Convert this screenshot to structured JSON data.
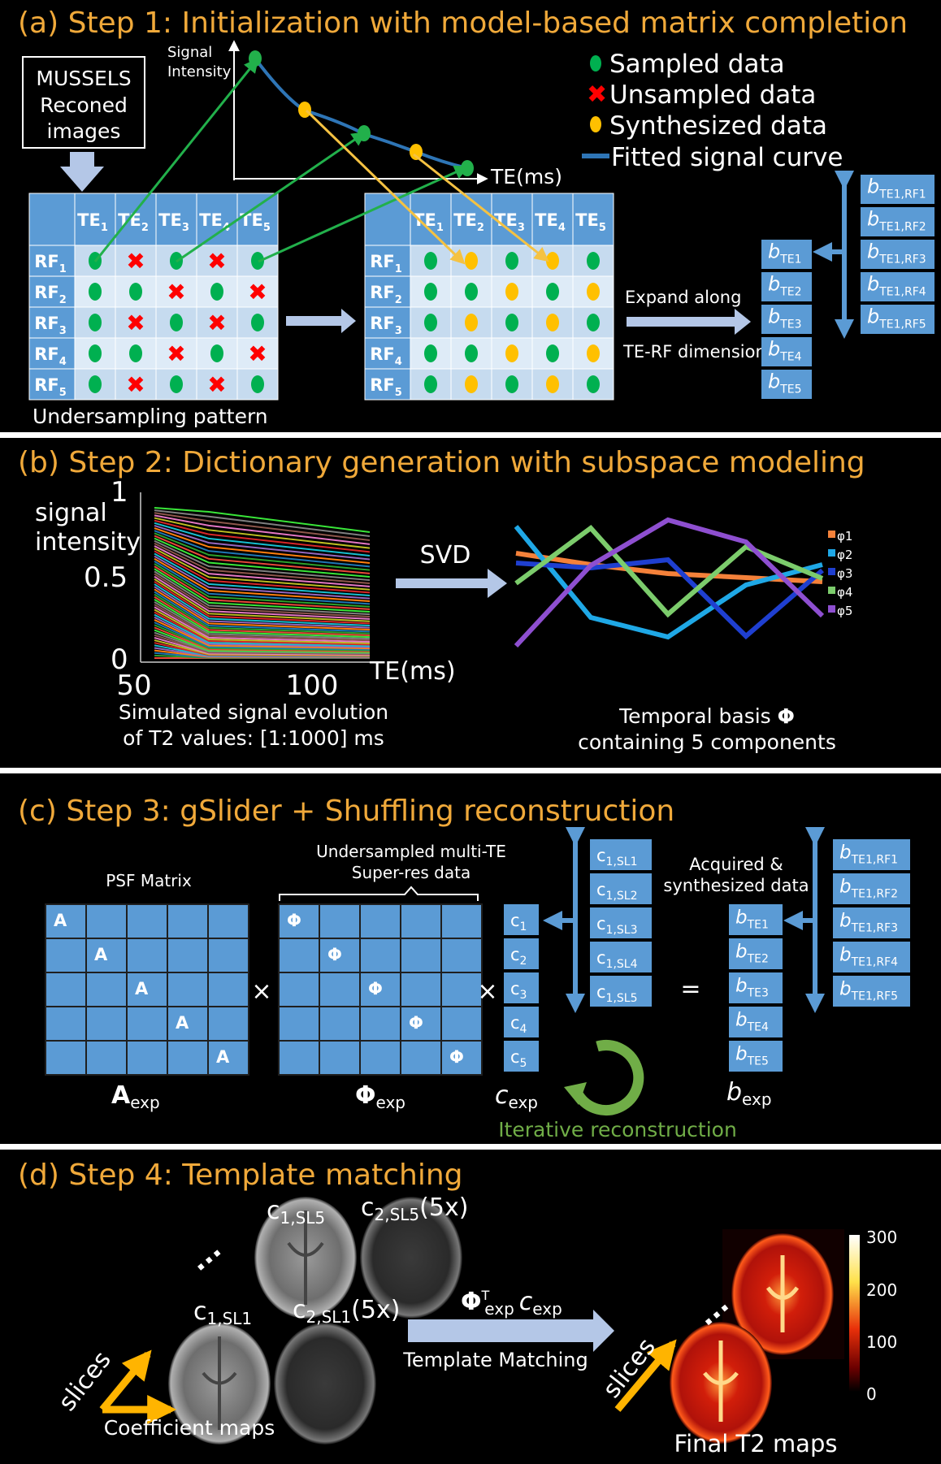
{
  "panel_a": {
    "title": "(a) Step 1: Initialization with model-based matrix completion",
    "box_lines": [
      "MUSSELS",
      "Reconed",
      "images"
    ],
    "axis_y_lines": [
      "Signal",
      "Intensity"
    ],
    "axis_x": "TE(ms)",
    "legend": [
      {
        "label": "Sampled data",
        "color": "#00b050",
        "icon": "green-dot"
      },
      {
        "label": "Unsampled data",
        "color": "#ff0000",
        "icon": "red-cross"
      },
      {
        "label": "Synthesized data",
        "color": "#ffc000",
        "icon": "yellow-dot"
      },
      {
        "label": "Fitted signal curve",
        "color": "#2e75b6",
        "icon": "blue-line"
      }
    ],
    "te_headers": [
      "TE1",
      "TE2",
      "TE3",
      "TE4",
      "TE5"
    ],
    "rf_headers": [
      "RF1",
      "RF2",
      "RF3",
      "RF4",
      "RF5"
    ],
    "undersampling_label": "Undersampling pattern",
    "left_table": [
      [
        "S",
        "X",
        "S",
        "X",
        "S"
      ],
      [
        "S",
        "S",
        "X",
        "S",
        "X"
      ],
      [
        "S",
        "X",
        "S",
        "X",
        "S"
      ],
      [
        "S",
        "S",
        "X",
        "S",
        "X"
      ],
      [
        "S",
        "X",
        "S",
        "X",
        "S"
      ]
    ],
    "right_table": [
      [
        "S",
        "Y",
        "S",
        "Y",
        "S"
      ],
      [
        "S",
        "S",
        "Y",
        "S",
        "Y"
      ],
      [
        "S",
        "Y",
        "S",
        "Y",
        "S"
      ],
      [
        "S",
        "S",
        "Y",
        "S",
        "Y"
      ],
      [
        "S",
        "Y",
        "S",
        "Y",
        "S"
      ]
    ],
    "expand_label_1": "Expand along",
    "expand_label_2": "TE-RF dimension",
    "b_te_cells": [
      "TE1",
      "TE2",
      "TE3",
      "TE4",
      "TE5"
    ],
    "b_rf_cells": [
      "TE1,RF1",
      "TE1,RF2",
      "TE1,RF3",
      "TE1,RF4",
      "TE1,RF5"
    ]
  },
  "panel_b": {
    "title": "(b) Step 2: Dictionary generation with subspace modeling",
    "ylabel_lines": [
      "signal",
      "intensity"
    ],
    "y_ticks": [
      "1",
      "0.5",
      "0"
    ],
    "x_ticks": [
      "50",
      "100"
    ],
    "xlabel": "TE(ms)",
    "caption_left": [
      "Simulated signal evolution",
      "of T2 values: [1:1000] ms"
    ],
    "svd_label": "SVD",
    "caption_right_1": "Temporal basis ",
    "caption_right_phi": "Φ",
    "caption_right_2": "containing 5 components",
    "basis_legend": [
      "φ1",
      "φ2",
      "φ3",
      "φ4",
      "φ5"
    ],
    "basis_colors": [
      "#f4813a",
      "#1fa8e6",
      "#1f3fd0",
      "#7ccc6c",
      "#8e4fd0"
    ]
  },
  "panel_c": {
    "title": "(c) Step 3: gSlider + Shuffling reconstruction",
    "psf_label": "PSF Matrix",
    "super_res_lines": [
      "Undersampled multi-TE",
      "Super-res data"
    ],
    "a_cell": "A",
    "phi_cell": "Φ",
    "times": "×",
    "equals": "=",
    "c_cells": [
      "1",
      "2",
      "3",
      "4",
      "5"
    ],
    "c_sl_cells": [
      "1,SL1",
      "1,SL2",
      "1,SL3",
      "1,SL4",
      "1,SL5"
    ],
    "acq_lines": [
      "Acquired &",
      "synthesized data"
    ],
    "b_te_cells": [
      "TE1",
      "TE2",
      "TE3",
      "TE4",
      "TE5"
    ],
    "b_rf_cells": [
      "TE1,RF1",
      "TE1,RF2",
      "TE1,RF3",
      "TE1,RF4",
      "TE1,RF5"
    ],
    "a_exp": "A",
    "phi_exp": "Φ",
    "c_exp": "c",
    "b_exp": "b",
    "exp_sub": "exp",
    "iter_label": "Iterative reconstruction"
  },
  "panel_d": {
    "title": "(d) Step 4: Template matching",
    "c1_sl5": "1,SL5",
    "c2_sl5": "2,SL5",
    "c1_sl1": "1,SL1",
    "c2_sl1": "2,SL1",
    "x5": "(5x)",
    "c_letter": "c",
    "dots": "...",
    "formula_phi": "Φ",
    "formula_sup": "T",
    "formula_sub": "exp",
    "formula_c": "c",
    "template_label": "Template Matching",
    "slices": "slices",
    "coef_label": "Coefficient maps",
    "final_label": "Final T2 maps",
    "colorbar_ticks": [
      "300",
      "200",
      "100",
      "0"
    ]
  }
}
